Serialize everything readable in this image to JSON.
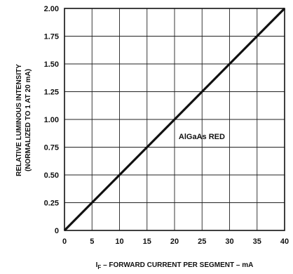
{
  "chart_data": {
    "type": "line",
    "title": "",
    "xlabel": {
      "prefix": "I",
      "subscript": "F",
      "rest": " – FORWARD CURRENT PER SEGMENT – mA"
    },
    "ylabel": {
      "line1": "RELATIVE LUMINOUS INTENSITY",
      "line2": "(NORMALIZED TO 1 AT 20 mA)"
    },
    "xlim": [
      0,
      40
    ],
    "ylim": [
      0,
      2.0
    ],
    "x_ticks": [
      "0",
      "5",
      "10",
      "15",
      "20",
      "25",
      "30",
      "35",
      "40"
    ],
    "y_ticks": [
      "0",
      "0.25",
      "0.50",
      "0.75",
      "1.00",
      "1.25",
      "1.50",
      "1.75",
      "2.00"
    ],
    "x_tick_values": [
      0,
      5,
      10,
      15,
      20,
      25,
      30,
      35,
      40
    ],
    "y_tick_values": [
      0,
      0.25,
      0.5,
      0.75,
      1.0,
      1.25,
      1.5,
      1.75,
      2.0
    ],
    "grid": true,
    "series": [
      {
        "x": [
          0,
          40
        ],
        "y": [
          0,
          2.0
        ],
        "color": "#111111"
      }
    ],
    "annotations": [
      {
        "text": "AlGaAs RED",
        "x": 20.5,
        "y": 1.0
      }
    ]
  }
}
